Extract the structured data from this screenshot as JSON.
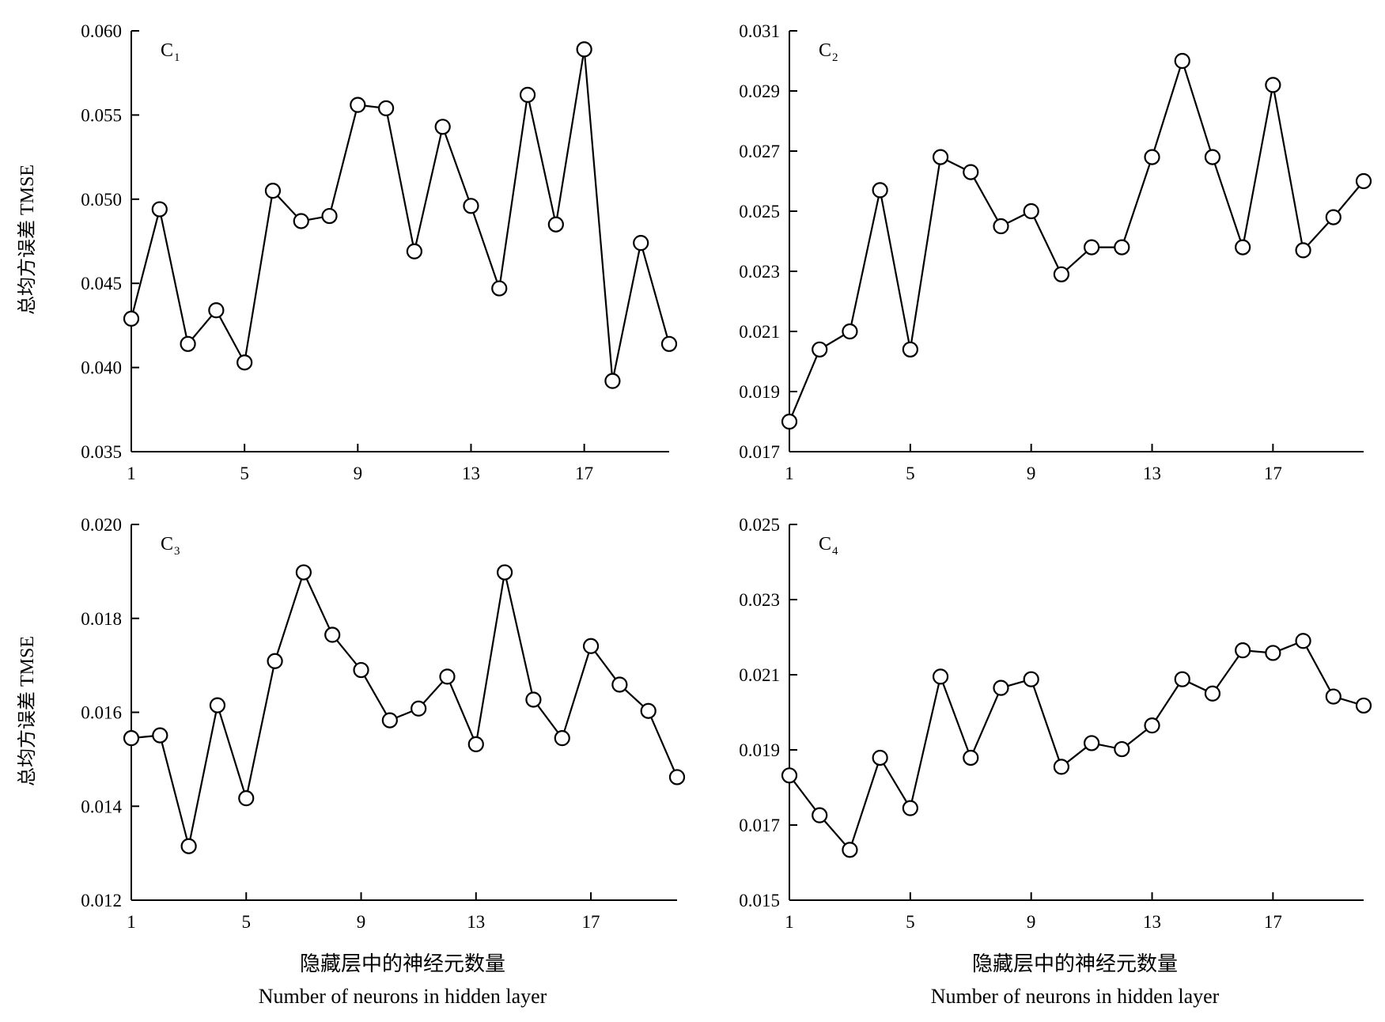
{
  "figure": {
    "ylabel": "总均方误差 TMSE",
    "xlabel_cn": "隐藏层中的神经元数量",
    "xlabel_en": "Number of neurons in hidden layer"
  },
  "chart_data": [
    {
      "type": "line",
      "panel_label": "C",
      "panel_sub": "1",
      "x": [
        1,
        2,
        3,
        4,
        5,
        6,
        7,
        8,
        9,
        10,
        11,
        12,
        13,
        14,
        15,
        16,
        17,
        18,
        19,
        20
      ],
      "values": [
        0.0429,
        0.0494,
        0.0414,
        0.0434,
        0.0403,
        0.0505,
        0.0487,
        0.049,
        0.0556,
        0.0554,
        0.0469,
        0.0543,
        0.0496,
        0.0447,
        0.0562,
        0.0485,
        0.0589,
        0.0392,
        0.0474,
        0.0414
      ],
      "xticks": [
        "1",
        "5",
        "9",
        "13",
        "17"
      ],
      "xtick_values": [
        1,
        5,
        9,
        13,
        17
      ],
      "yticks": [
        "0.035",
        "0.040",
        "0.045",
        "0.050",
        "0.055",
        "0.060"
      ],
      "ylim": [
        0.035,
        0.06
      ],
      "xlim": [
        1,
        20
      ],
      "ylabel": "总均方误差 TMSE",
      "grid": false
    },
    {
      "type": "line",
      "panel_label": "C",
      "panel_sub": "2",
      "x": [
        1,
        2,
        3,
        4,
        5,
        6,
        7,
        8,
        9,
        10,
        11,
        12,
        13,
        14,
        15,
        16,
        17,
        18,
        19,
        20
      ],
      "values": [
        0.018,
        0.0204,
        0.021,
        0.0257,
        0.0204,
        0.0268,
        0.0263,
        0.0245,
        0.025,
        0.0229,
        0.0238,
        0.0238,
        0.0268,
        0.03,
        0.0268,
        0.0238,
        0.0292,
        0.0237,
        0.0248,
        0.026
      ],
      "xticks": [
        "1",
        "5",
        "9",
        "13",
        "17"
      ],
      "xtick_values": [
        1,
        5,
        9,
        13,
        17
      ],
      "yticks": [
        "0.017",
        "0.019",
        "0.021",
        "0.023",
        "0.025",
        "0.027",
        "0.029",
        "0.031"
      ],
      "ylim": [
        0.017,
        0.031
      ],
      "xlim": [
        1,
        20
      ],
      "grid": false
    },
    {
      "type": "line",
      "panel_label": "C",
      "panel_sub": "3",
      "x": [
        1,
        2,
        3,
        4,
        5,
        6,
        7,
        8,
        9,
        10,
        11,
        12,
        13,
        14,
        15,
        16,
        17,
        18,
        19,
        20
      ],
      "values": [
        0.01545,
        0.01551,
        0.01315,
        0.01615,
        0.01417,
        0.01709,
        0.01898,
        0.01765,
        0.0169,
        0.01583,
        0.01608,
        0.01676,
        0.01532,
        0.01898,
        0.01627,
        0.01545,
        0.01741,
        0.01659,
        0.01603,
        0.01462
      ],
      "xticks": [
        "1",
        "5",
        "9",
        "13",
        "17"
      ],
      "xtick_values": [
        1,
        5,
        9,
        13,
        17
      ],
      "yticks": [
        "0.012",
        "0.014",
        "0.016",
        "0.018",
        "0.020"
      ],
      "ylim": [
        0.012,
        0.02
      ],
      "xlim": [
        1,
        20
      ],
      "ylabel": "总均方误差 TMSE",
      "xlabel_cn": "隐藏层中的神经元数量",
      "xlabel_en": "Number of neurons in hidden layer",
      "grid": false
    },
    {
      "type": "line",
      "panel_label": "C",
      "panel_sub": "4",
      "x": [
        1,
        2,
        3,
        4,
        5,
        6,
        7,
        8,
        9,
        10,
        11,
        12,
        13,
        14,
        15,
        16,
        17,
        18,
        19,
        20
      ],
      "values": [
        0.01832,
        0.01726,
        0.01634,
        0.01879,
        0.01745,
        0.02095,
        0.01879,
        0.02065,
        0.02088,
        0.01855,
        0.01918,
        0.01902,
        0.01965,
        0.02088,
        0.0205,
        0.02165,
        0.02158,
        0.0219,
        0.02042,
        0.02018
      ],
      "xticks": [
        "1",
        "5",
        "9",
        "13",
        "17"
      ],
      "xtick_values": [
        1,
        5,
        9,
        13,
        17
      ],
      "yticks": [
        "0.015",
        "0.017",
        "0.019",
        "0.021",
        "0.023",
        "0.025"
      ],
      "ylim": [
        0.015,
        0.025
      ],
      "xlim": [
        1,
        20
      ],
      "xlabel_cn": "隐藏层中的神经元数量",
      "xlabel_en": "Number of neurons in hidden layer",
      "grid": false
    }
  ]
}
